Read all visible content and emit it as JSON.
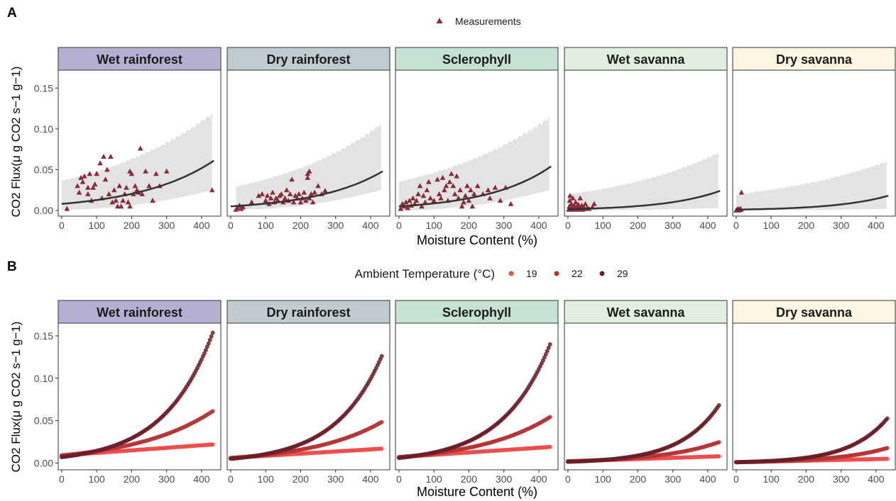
{
  "colors": {
    "point_triangle": "#8B2A3A",
    "ribbon": "#E3E3E3",
    "fit_line": "#333333",
    "temp_19": "#EE4B4B",
    "temp_22": "#B53535",
    "temp_29": "#6B1F28",
    "strip_colors": [
      "#B5B0D1",
      "#C1CBD0",
      "#C5E1D3",
      "#E2EFDE",
      "#FBF6E1"
    ]
  },
  "panelA": {
    "tag": "A",
    "legend_label": "Measurements",
    "xlabel": "Moisture Content (%)",
    "ylabel": "CO2 Flux(μ g CO2 s−1 g−1)"
  },
  "panelB": {
    "tag": "B",
    "legend_title": "Ambient Temperature (°C)",
    "legend_items": [
      "19",
      "22",
      "29"
    ],
    "xlabel": "Moisture Content (%)",
    "ylabel": "CO2 Flux(μ g CO2 s−1 g−1)"
  },
  "chart_data": [
    {
      "type": "scatter",
      "title": "",
      "xlabel": "Moisture Content (%)",
      "ylabel": "CO2 Flux(μ g CO2 s−1 g−1)",
      "xlim": [
        -10,
        455
      ],
      "ylim": [
        -0.007,
        0.172
      ],
      "x_ticks": [
        0,
        100,
        200,
        300,
        400
      ],
      "y_ticks": [
        0.0,
        0.05,
        0.1,
        0.15
      ],
      "y_tick_labels": [
        "0.00",
        "0.05",
        "0.10",
        "0.15"
      ],
      "legend": "top-center",
      "grid": false,
      "facets": [
        {
          "name": "Wet rainforest",
          "fit": {
            "x_end": 435,
            "y0": 0.008,
            "yend": 0.061
          },
          "ribbon": {
            "x_start": 0,
            "x_end": 430,
            "lo0": 0.001,
            "lo_end": 0.025,
            "hi0": 0.037,
            "hi_end": 0.121
          },
          "points": [
            [
              15,
              0.002
            ],
            [
              45,
              0.03
            ],
            [
              50,
              0.022
            ],
            [
              55,
              0.04
            ],
            [
              60,
              0.035
            ],
            [
              65,
              0.042
            ],
            [
              75,
              0.02
            ],
            [
              75,
              0.028
            ],
            [
              80,
              0.045
            ],
            [
              85,
              0.012
            ],
            [
              90,
              0.028
            ],
            [
              95,
              0.032
            ],
            [
              100,
              0.045
            ],
            [
              110,
              0.058
            ],
            [
              115,
              0.015
            ],
            [
              120,
              0.066
            ],
            [
              125,
              0.038
            ],
            [
              130,
              0.05
            ],
            [
              135,
              0.02
            ],
            [
              140,
              0.066
            ],
            [
              145,
              0.01
            ],
            [
              150,
              0.025
            ],
            [
              155,
              0.012
            ],
            [
              160,
              0.005
            ],
            [
              165,
              0.03
            ],
            [
              170,
              0.005
            ],
            [
              175,
              0.012
            ],
            [
              180,
              0.02
            ],
            [
              185,
              0.028
            ],
            [
              190,
              0.01
            ],
            [
              195,
              0.005
            ],
            [
              195,
              0.048
            ],
            [
              200,
              0.045
            ],
            [
              205,
              0.02
            ],
            [
              210,
              0.03
            ],
            [
              215,
              0.025
            ],
            [
              220,
              0.022
            ],
            [
              225,
              0.076
            ],
            [
              230,
              0.02
            ],
            [
              240,
              0.048
            ],
            [
              250,
              0.03
            ],
            [
              260,
              0.012
            ],
            [
              270,
              0.045
            ],
            [
              280,
              0.03
            ],
            [
              300,
              0.048
            ],
            [
              430,
              0.025
            ]
          ]
        },
        {
          "name": "Dry rainforest",
          "fit": {
            "x_end": 435,
            "y0": 0.005,
            "yend": 0.048
          },
          "ribbon": {
            "x_start": 15,
            "x_end": 430,
            "lo0": 0.001,
            "lo_end": 0.025,
            "hi0": 0.03,
            "hi_end": 0.108
          },
          "points": [
            [
              15,
              0.001
            ],
            [
              20,
              0.003
            ],
            [
              25,
              0.006
            ],
            [
              30,
              0.002
            ],
            [
              35,
              0.004
            ],
            [
              60,
              0.01
            ],
            [
              80,
              0.018
            ],
            [
              90,
              0.02
            ],
            [
              100,
              0.012
            ],
            [
              105,
              0.018
            ],
            [
              110,
              0.008
            ],
            [
              115,
              0.015
            ],
            [
              120,
              0.022
            ],
            [
              125,
              0.01
            ],
            [
              130,
              0.015
            ],
            [
              135,
              0.012
            ],
            [
              140,
              0.018
            ],
            [
              145,
              0.02
            ],
            [
              150,
              0.01
            ],
            [
              155,
              0.015
            ],
            [
              160,
              0.025
            ],
            [
              165,
              0.012
            ],
            [
              170,
              0.02
            ],
            [
              175,
              0.038
            ],
            [
              180,
              0.01
            ],
            [
              185,
              0.018
            ],
            [
              190,
              0.015
            ],
            [
              195,
              0.02
            ],
            [
              200,
              0.01
            ],
            [
              205,
              0.015
            ],
            [
              210,
              0.022
            ],
            [
              215,
              0.012
            ],
            [
              220,
              0.04
            ],
            [
              225,
              0.015
            ],
            [
              230,
              0.02
            ],
            [
              235,
              0.01
            ],
            [
              240,
              0.022
            ],
            [
              250,
              0.03
            ],
            [
              260,
              0.02
            ],
            [
              270,
              0.024
            ],
            [
              220,
              0.045
            ],
            [
              225,
              0.048
            ]
          ]
        },
        {
          "name": "Sclerophyll",
          "fit": {
            "x_end": 435,
            "y0": 0.005,
            "yend": 0.054
          },
          "ribbon": {
            "x_start": 0,
            "x_end": 430,
            "lo0": 0.0,
            "lo_end": 0.025,
            "hi0": 0.036,
            "hi_end": 0.116
          },
          "points": [
            [
              5,
              0.002
            ],
            [
              10,
              0.008
            ],
            [
              15,
              0.005
            ],
            [
              20,
              0.01
            ],
            [
              25,
              0.003
            ],
            [
              30,
              0.012
            ],
            [
              35,
              0.006
            ],
            [
              40,
              0.015
            ],
            [
              45,
              0.008
            ],
            [
              50,
              0.012
            ],
            [
              55,
              0.02
            ],
            [
              60,
              0.03
            ],
            [
              65,
              0.005
            ],
            [
              70,
              0.018
            ],
            [
              75,
              0.01
            ],
            [
              80,
              0.025
            ],
            [
              85,
              0.035
            ],
            [
              90,
              0.015
            ],
            [
              100,
              0.012
            ],
            [
              110,
              0.038
            ],
            [
              115,
              0.02
            ],
            [
              120,
              0.015
            ],
            [
              125,
              0.04
            ],
            [
              130,
              0.025
            ],
            [
              135,
              0.03
            ],
            [
              140,
              0.012
            ],
            [
              145,
              0.035
            ],
            [
              150,
              0.045
            ],
            [
              155,
              0.03
            ],
            [
              160,
              0.02
            ],
            [
              165,
              0.042
            ],
            [
              170,
              0.015
            ],
            [
              175,
              0.025
            ],
            [
              180,
              0.005
            ],
            [
              185,
              0.01
            ],
            [
              190,
              0.018
            ],
            [
              195,
              0.03
            ],
            [
              200,
              0.012
            ],
            [
              205,
              0.025
            ],
            [
              210,
              0.005
            ],
            [
              215,
              0.02
            ],
            [
              225,
              0.03
            ],
            [
              240,
              0.02
            ],
            [
              255,
              0.025
            ],
            [
              260,
              0.015
            ],
            [
              275,
              0.028
            ],
            [
              290,
              0.012
            ],
            [
              305,
              0.028
            ],
            [
              320,
              0.008
            ]
          ]
        },
        {
          "name": "Wet savanna",
          "fit": {
            "x_end": 435,
            "y0": 0.0015,
            "yend": 0.024
          },
          "ribbon": {
            "x_start": 0,
            "x_end": 430,
            "lo0": 0.0,
            "lo_end": 0.003,
            "hi0": 0.02,
            "hi_end": 0.072
          },
          "points": [
            [
              2,
              0.001
            ],
            [
              4,
              0.005
            ],
            [
              5,
              0.012
            ],
            [
              6,
              0.018
            ],
            [
              8,
              0.002
            ],
            [
              10,
              0.008
            ],
            [
              12,
              0.003
            ],
            [
              14,
              0.015
            ],
            [
              15,
              0.001
            ],
            [
              18,
              0.006
            ],
            [
              20,
              0.002
            ],
            [
              22,
              0.01
            ],
            [
              25,
              0.004
            ],
            [
              28,
              0.001
            ],
            [
              30,
              0.007
            ],
            [
              32,
              0.003
            ],
            [
              35,
              0.015
            ],
            [
              38,
              0.002
            ],
            [
              40,
              0.006
            ],
            [
              42,
              0.001
            ],
            [
              45,
              0.004
            ],
            [
              48,
              0.002
            ],
            [
              50,
              0.008
            ],
            [
              55,
              0.003
            ],
            [
              60,
              0.002
            ],
            [
              70,
              0.004
            ],
            [
              75,
              0.008
            ]
          ]
        },
        {
          "name": "Dry savanna",
          "fit": {
            "x_end": 435,
            "y0": 0.001,
            "yend": 0.018
          },
          "ribbon": {
            "x_start": 0,
            "x_end": 430,
            "lo0": 0.0,
            "lo_end": 0.002,
            "hi0": 0.02,
            "hi_end": 0.061
          },
          "points": [
            [
              0,
              0.0
            ],
            [
              3,
              0.001
            ],
            [
              5,
              0.002
            ],
            [
              8,
              0.0
            ],
            [
              10,
              0.001
            ],
            [
              12,
              0.002
            ],
            [
              14,
              0.001
            ],
            [
              15,
              0.022
            ]
          ]
        }
      ]
    },
    {
      "type": "scatter",
      "title": "",
      "xlabel": "Moisture Content (%)",
      "ylabel": "CO2 Flux(μ g CO2 s−1 g−1)",
      "xlim": [
        -10,
        455
      ],
      "ylim": [
        -0.008,
        0.165
      ],
      "x_ticks": [
        0,
        100,
        200,
        300,
        400
      ],
      "y_ticks": [
        0.0,
        0.05,
        0.1,
        0.15
      ],
      "y_tick_labels": [
        "0.00",
        "0.05",
        "0.10",
        "0.15"
      ],
      "legend": "top-center",
      "grid": false,
      "x_range": [
        0,
        435
      ],
      "facets": [
        {
          "name": "Wet rainforest",
          "series": [
            {
              "name": "19",
              "y0": 0.009,
              "yend": 0.022
            },
            {
              "name": "22",
              "y0": 0.009,
              "yend": 0.062
            },
            {
              "name": "29",
              "y0": 0.007,
              "yend": 0.157
            }
          ]
        },
        {
          "name": "Dry rainforest",
          "series": [
            {
              "name": "19",
              "y0": 0.006,
              "yend": 0.017
            },
            {
              "name": "22",
              "y0": 0.006,
              "yend": 0.049
            },
            {
              "name": "29",
              "y0": 0.005,
              "yend": 0.129
            }
          ]
        },
        {
          "name": "Sclerophyll",
          "series": [
            {
              "name": "19",
              "y0": 0.007,
              "yend": 0.019
            },
            {
              "name": "22",
              "y0": 0.007,
              "yend": 0.055
            },
            {
              "name": "29",
              "y0": 0.006,
              "yend": 0.143
            }
          ]
        },
        {
          "name": "Wet savanna",
          "series": [
            {
              "name": "19",
              "y0": 0.002,
              "yend": 0.008
            },
            {
              "name": "22",
              "y0": 0.002,
              "yend": 0.025
            },
            {
              "name": "29",
              "y0": 0.0015,
              "yend": 0.07
            }
          ]
        },
        {
          "name": "Dry savanna",
          "series": [
            {
              "name": "19",
              "y0": 0.001,
              "yend": 0.005
            },
            {
              "name": "22",
              "y0": 0.001,
              "yend": 0.018
            },
            {
              "name": "29",
              "y0": 0.001,
              "yend": 0.054
            }
          ]
        }
      ]
    }
  ]
}
